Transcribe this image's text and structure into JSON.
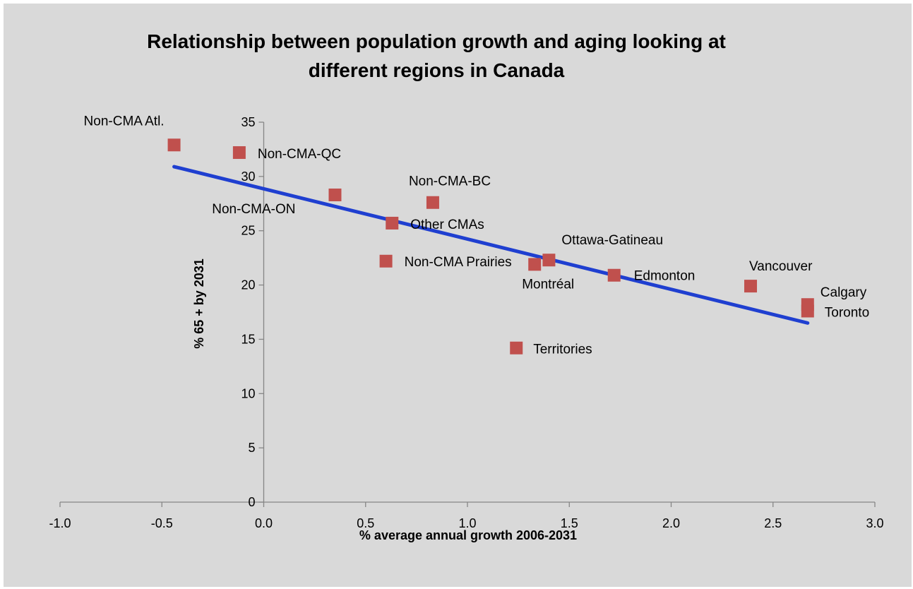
{
  "chart_data": {
    "type": "scatter",
    "title_lines": [
      "Relationship between population growth and aging looking at",
      "different regions in Canada"
    ],
    "xlabel": "% average annual growth 2006-2031",
    "ylabel": "% 65 + by 2031",
    "xlim": [
      -1.0,
      3.0
    ],
    "ylim": [
      0,
      35
    ],
    "x_ticks": [
      "-1.0",
      "-0.5",
      "0.0",
      "0.5",
      "1.0",
      "1.5",
      "2.0",
      "2.5",
      "3.0"
    ],
    "y_ticks": [
      "0",
      "5",
      "10",
      "15",
      "20",
      "25",
      "30",
      "35"
    ],
    "grid": false,
    "legend": "none",
    "marker_color": "#c0504d",
    "trendline_color": "#1f3fd0",
    "points": [
      {
        "label": "Non-CMA Atl.",
        "x": -0.44,
        "y": 32.9
      },
      {
        "label": "Non-CMA-QC",
        "x": -0.12,
        "y": 32.2
      },
      {
        "label": "Non-CMA-ON",
        "x": 0.35,
        "y": 28.3
      },
      {
        "label": "Non-CMA-BC",
        "x": 0.83,
        "y": 27.6
      },
      {
        "label": "Other CMAs",
        "x": 0.63,
        "y": 25.7
      },
      {
        "label": "Non-CMA Prairies",
        "x": 0.6,
        "y": 22.2
      },
      {
        "label": "Ottawa-Gatineau",
        "x": 1.4,
        "y": 22.3
      },
      {
        "label": "Montréal",
        "x": 1.33,
        "y": 21.9
      },
      {
        "label": "Edmonton",
        "x": 1.72,
        "y": 20.9
      },
      {
        "label": "Vancouver",
        "x": 2.39,
        "y": 19.9
      },
      {
        "label": "Calgary",
        "x": 2.67,
        "y": 18.2
      },
      {
        "label": "Toronto",
        "x": 2.67,
        "y": 17.6
      },
      {
        "label": "Territories",
        "x": 1.24,
        "y": 14.2
      }
    ],
    "trendline": {
      "x": [
        -0.44,
        2.67
      ],
      "y": [
        30.9,
        16.5
      ]
    }
  }
}
